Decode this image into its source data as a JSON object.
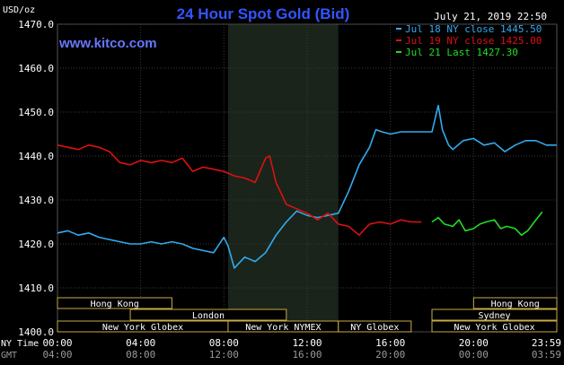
{
  "chart_data": {
    "type": "line",
    "title": "24 Hour Spot Gold (Bid)",
    "website": "www.kitco.com",
    "timestamp": "July 21, 2019 22:50",
    "ylabel": "USD/oz",
    "ylim": [
      1400,
      1470
    ],
    "y_ticks": [
      "1470.0",
      "1460.0",
      "1450.0",
      "1440.0",
      "1430.0",
      "1420.0",
      "1410.0",
      "1400.0"
    ],
    "x_axis_label_ny": "NY Time",
    "x_axis_label_gmt": "GMT",
    "x_ticks_ny": [
      "00:00",
      "04:00",
      "08:00",
      "12:00",
      "16:00",
      "20:00",
      "23:59"
    ],
    "x_ticks_gmt": [
      "04:00",
      "08:00",
      "12:00",
      "16:00",
      "20:00",
      "00:00",
      "03:59"
    ],
    "grid": true,
    "legend_position": "top-right",
    "colors": {
      "jul18": "#33aaee",
      "jul19": "#dd1111",
      "jul21": "#22dd22",
      "title": "#3355ff",
      "website": "#6677ff",
      "axis_text": "#ffffff",
      "shade": "#1a241a",
      "session_box": "#c8aa44"
    },
    "legend": [
      {
        "label": "Jul 18 NY close 1445.50",
        "color": "#33aaee"
      },
      {
        "label": "Jul 19 NY close 1425.00",
        "color": "#dd1111"
      },
      {
        "label": "Jul 21 Last 1427.30",
        "color": "#22dd22"
      }
    ],
    "series": [
      {
        "name": "Jul 18",
        "x": [
          0,
          0.5,
          1,
          1.5,
          2,
          2.5,
          3,
          3.5,
          4,
          4.5,
          5,
          5.5,
          6,
          6.5,
          7,
          7.5,
          8,
          8.2,
          8.5,
          9,
          9.5,
          10,
          10.5,
          11,
          11.5,
          12,
          12.5,
          13,
          13.5,
          14,
          14.5,
          15,
          15.3,
          15.6,
          16,
          16.5,
          17,
          17.5,
          18,
          18.3,
          18.5,
          18.8,
          19,
          19.5,
          20,
          20.5,
          21,
          21.5,
          22,
          22.5,
          23,
          23.5,
          23.99
        ],
        "values": [
          1422.5,
          1423.0,
          1422.0,
          1422.5,
          1421.5,
          1421.0,
          1420.5,
          1420.0,
          1420.0,
          1420.5,
          1420.0,
          1420.5,
          1420.0,
          1419.0,
          1418.5,
          1418.0,
          1421.5,
          1419.5,
          1414.5,
          1417.0,
          1416.0,
          1418.0,
          1422.0,
          1425.0,
          1427.5,
          1426.5,
          1426.0,
          1426.5,
          1427.0,
          1432.0,
          1438.0,
          1442.0,
          1446.0,
          1445.5,
          1445.0,
          1445.5,
          1445.5,
          1445.5,
          1445.5,
          1451.5,
          1446.0,
          1442.5,
          1441.5,
          1443.5,
          1444.0,
          1442.5,
          1443.0,
          1441.0,
          1442.5,
          1443.5,
          1443.5,
          1442.5,
          1442.5
        ]
      },
      {
        "name": "Jul 19",
        "x": [
          0,
          0.5,
          1,
          1.5,
          2,
          2.5,
          3,
          3.5,
          4,
          4.5,
          5,
          5.5,
          6,
          6.5,
          7,
          7.5,
          8,
          8.5,
          9,
          9.5,
          10,
          10.2,
          10.5,
          11,
          11.5,
          12,
          12.5,
          13,
          13.5,
          14,
          14.5,
          15,
          15.5,
          16,
          16.5,
          17,
          17.5
        ],
        "values": [
          1442.5,
          1442.0,
          1441.5,
          1442.5,
          1442.0,
          1441.0,
          1438.5,
          1438.0,
          1439.0,
          1438.5,
          1439.0,
          1438.5,
          1439.5,
          1436.5,
          1437.5,
          1437.0,
          1436.5,
          1435.5,
          1435.0,
          1434.0,
          1439.5,
          1440.0,
          1434.0,
          1429.0,
          1428.0,
          1427.0,
          1425.5,
          1427.0,
          1424.5,
          1424.0,
          1422.0,
          1424.5,
          1425.0,
          1424.5,
          1425.5,
          1425.0,
          1425.0
        ]
      },
      {
        "name": "Jul 21",
        "x": [
          18,
          18.3,
          18.6,
          19,
          19.3,
          19.6,
          20,
          20.3,
          20.6,
          21,
          21.3,
          21.6,
          22,
          22.3,
          22.6,
          23,
          23.3
        ],
        "values": [
          1425.0,
          1426.0,
          1424.5,
          1424.0,
          1425.5,
          1423.0,
          1423.5,
          1424.5,
          1425.0,
          1425.5,
          1423.5,
          1424.0,
          1423.5,
          1422.0,
          1423.0,
          1425.5,
          1427.3
        ]
      }
    ],
    "sessions": [
      {
        "label": "Hong Kong",
        "start": 0,
        "end": 5.5,
        "row": 0
      },
      {
        "label": "Hong Kong",
        "start": 20.0,
        "end": 24.0,
        "row": 0
      },
      {
        "label": "London",
        "start": 3.5,
        "end": 11.0,
        "row": 1
      },
      {
        "label": "Sydney",
        "start": 18.0,
        "end": 24.0,
        "row": 1
      },
      {
        "label": "New York Globex",
        "start": 0,
        "end": 8.2,
        "row": 2
      },
      {
        "label": "New York NYMEX",
        "start": 8.2,
        "end": 13.5,
        "row": 2
      },
      {
        "label": "NY Globex",
        "start": 13.5,
        "end": 17.0,
        "row": 2
      },
      {
        "label": "New York Globex",
        "start": 18.0,
        "end": 24.0,
        "row": 2
      }
    ],
    "shaded_region": [
      8.2,
      13.5
    ]
  }
}
